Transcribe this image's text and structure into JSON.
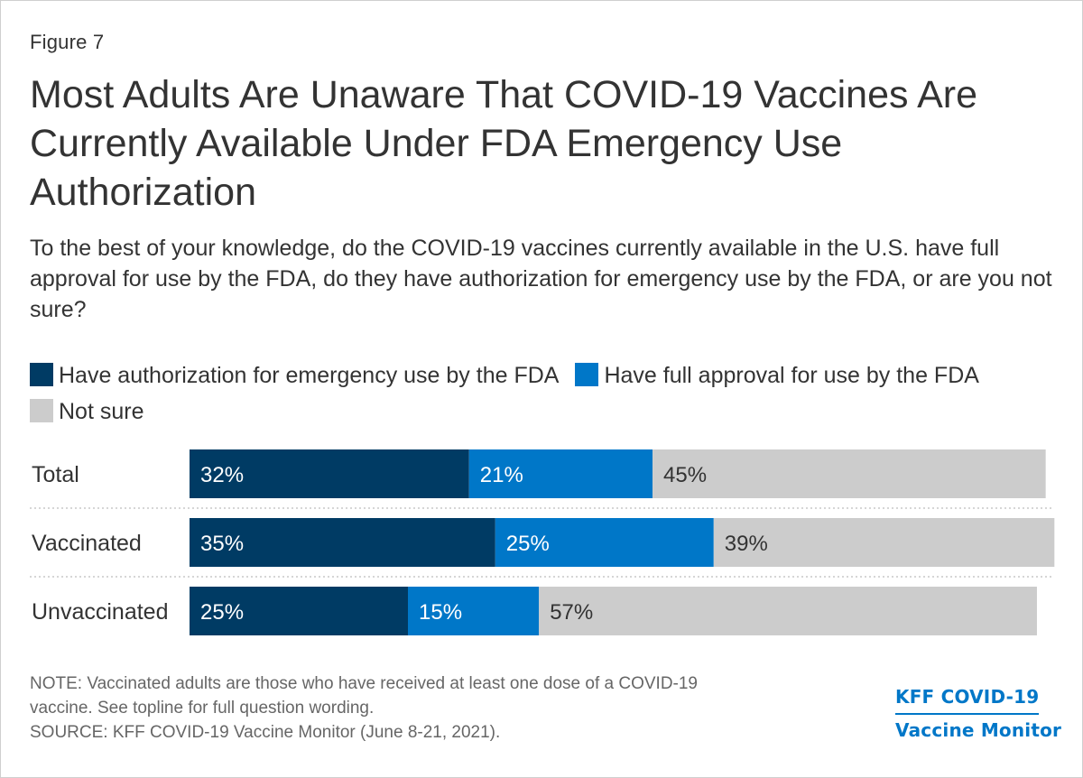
{
  "figure_label": "Figure 7",
  "title": "Most Adults Are Unaware That COVID-19 Vaccines Are Currently Available Under FDA Emergency Use Authorization",
  "subtitle": "To the best of your knowledge, do the COVID-19 vaccines currently available in the U.S. have full approval for use by the FDA, do they have authorization for emergency use by the FDA, or are you not sure?",
  "colors": {
    "emergency": "#003b64",
    "full": "#0077c8",
    "not_sure": "#cccccc",
    "text": "#333333"
  },
  "chart_data": {
    "type": "bar",
    "orientation": "horizontal",
    "stacked": true,
    "title": "Most Adults Are Unaware That COVID-19 Vaccines Are Currently Available Under FDA Emergency Use Authorization",
    "xlabel": "",
    "ylabel": "",
    "xlim": [
      0,
      100
    ],
    "grid": false,
    "legend_position": "top",
    "categories": [
      "Total",
      "Vaccinated",
      "Unvaccinated"
    ],
    "series": [
      {
        "name": "Have authorization for emergency use by the FDA",
        "values": [
          32,
          35,
          25
        ],
        "labels": [
          "32%",
          "35%",
          "25%"
        ]
      },
      {
        "name": "Have full approval for use by the FDA",
        "values": [
          21,
          25,
          15
        ],
        "labels": [
          "21%",
          "25%",
          "15%"
        ]
      },
      {
        "name": "Not sure",
        "values": [
          45,
          39,
          57
        ],
        "labels": [
          "45%",
          "39%",
          "57%"
        ]
      }
    ]
  },
  "note_line1": "NOTE: Vaccinated adults are those who have received at least one dose of a COVID-19",
  "note_line2": "vaccine. See topline for full question wording.",
  "source": "SOURCE: KFF COVID-19 Vaccine Monitor (June 8-21, 2021).",
  "brand_line1": "KFF COVID-19",
  "brand_line2": "Vaccine Monitor"
}
